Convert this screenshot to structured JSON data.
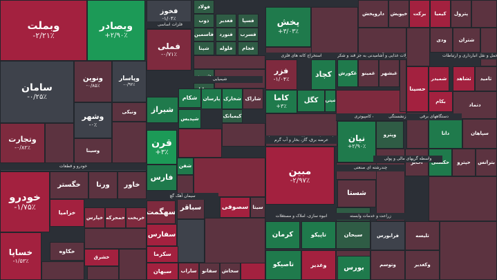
{
  "chart_data": {
    "type": "treemap",
    "title": "",
    "colors": {
      "strong_negative": "#a3213f",
      "negative": "#7e2a3e",
      "weak_negative": "#5c3340",
      "neutral": "#3e424b",
      "weak_positive": "#2f5c45",
      "positive": "#1f7a4c",
      "strong_positive": "#1c9a57",
      "background": "#2b2f36"
    },
    "sector_labels": [
      "خودرو و قطعات",
      "سیمان آهک گچ",
      "شیمیایی",
      "استخراج کانه های فلزی",
      "مواد و محصولات دارویی",
      "فراورده های نفتی، کک و سوخت هسته ای",
      "محصولات غذایی و آشامیدنی به جز قند و شکر",
      "فلزات اساسی",
      "انبوه سازی، املاک و مستغلات",
      "عرضه برق، گاز، بخار و آب گرم",
      "بانکها و موسسات اعتباری",
      "محصولات کامپیوتری",
      "زراعت و خدمات وابسته",
      "چندرشته ای صنعتی",
      "بیمه و بازنشستگی",
      "واسطه گریهای مالی و پولی",
      "دستگاههای برقی",
      "حمل و نقل انبارداری و ارتباطات"
    ],
    "stocks": [
      {
        "name": "وبملت",
        "change": "-۲/۲۱٪"
      },
      {
        "name": "وبصادر",
        "change": "+۲/۹۰٪"
      },
      {
        "name": "فملی",
        "change": "-۰/۷۱٪"
      },
      {
        "name": "سامان",
        "change": "-۰/۲۵٪"
      },
      {
        "name": "ونوین",
        "change": "-۰/۸۵٪"
      },
      {
        "name": "وپاسار",
        "change": "-۰/۹۲٪"
      },
      {
        "name": "وتجارت",
        "change": "-۰/۸۲٪"
      },
      {
        "name": "وشهر",
        "change": "-۰٪"
      },
      {
        "name": "ونیکی",
        "change": ""
      },
      {
        "name": "وسینا",
        "change": ""
      },
      {
        "name": "خودرو",
        "change": "-۱/۷۵٪"
      },
      {
        "name": "خگستر",
        "change": ""
      },
      {
        "name": "ورنا",
        "change": ""
      },
      {
        "name": "خاور",
        "change": ""
      },
      {
        "name": "خزامیا",
        "change": ""
      },
      {
        "name": "خساپا",
        "change": "-۱/۵۳٪"
      },
      {
        "name": "خپارس",
        "change": ""
      },
      {
        "name": "خمحرکه",
        "change": ""
      },
      {
        "name": "خریخت",
        "change": ""
      },
      {
        "name": "خکاوه",
        "change": ""
      },
      {
        "name": "خشرق",
        "change": ""
      },
      {
        "name": "فخوز",
        "change": "-۱/۰۴٪"
      },
      {
        "name": "فولاد",
        "change": ""
      },
      {
        "name": "فاسمین",
        "change": ""
      },
      {
        "name": "فنورد",
        "change": ""
      },
      {
        "name": "فسرب",
        "change": ""
      },
      {
        "name": "فلوله",
        "change": ""
      },
      {
        "name": "فجام",
        "change": ""
      },
      {
        "name": "ذوب",
        "change": ""
      },
      {
        "name": "فغدیر",
        "change": ""
      },
      {
        "name": "فسپا",
        "change": ""
      },
      {
        "name": "شپنا",
        "change": ""
      },
      {
        "name": "شبریز",
        "change": ""
      },
      {
        "name": "شرانل",
        "change": ""
      },
      {
        "name": "شکام",
        "change": ""
      },
      {
        "name": "شیراز",
        "change": ""
      },
      {
        "name": "شپدیس",
        "change": ""
      },
      {
        "name": "پارسان",
        "change": ""
      },
      {
        "name": "شخارک",
        "change": ""
      },
      {
        "name": "شاراک",
        "change": ""
      },
      {
        "name": "کیمیاتک",
        "change": ""
      },
      {
        "name": "قرن",
        "change": "+۳٪"
      },
      {
        "name": "فارس",
        "change": ""
      },
      {
        "name": "شفن",
        "change": ""
      },
      {
        "name": "پخش",
        "change": "+۳/۰۳٪"
      },
      {
        "name": "فزر",
        "change": "-۱/۰۴٪"
      },
      {
        "name": "کچاد",
        "change": ""
      },
      {
        "name": "کگل",
        "change": ""
      },
      {
        "name": "کاما",
        "change": "+۳٪"
      },
      {
        "name": "شپترو",
        "change": ""
      },
      {
        "name": "مبین",
        "change": "-۲/۹۷٪"
      },
      {
        "name": "کرمان",
        "change": ""
      },
      {
        "name": "تاپیکو",
        "change": ""
      },
      {
        "name": "سبحان",
        "change": ""
      },
      {
        "name": "نیان",
        "change": "+۲/۹۰٪"
      },
      {
        "name": "شستا",
        "change": ""
      },
      {
        "name": "وپترو",
        "change": ""
      },
      {
        "name": "حسینا",
        "change": ""
      },
      {
        "name": "شمیدر",
        "change": ""
      },
      {
        "name": "شتران",
        "change": ""
      },
      {
        "name": "سکرما",
        "change": ""
      },
      {
        "name": "سبهان",
        "change": ""
      },
      {
        "name": "ساراب",
        "change": ""
      },
      {
        "name": "سفانو",
        "change": ""
      },
      {
        "name": "سخاش",
        "change": ""
      },
      {
        "name": "سهگمت",
        "change": ""
      },
      {
        "name": "سباقر",
        "change": ""
      },
      {
        "name": "سفارس",
        "change": ""
      },
      {
        "name": "سصوفی",
        "change": ""
      },
      {
        "name": "سیتا",
        "change": ""
      },
      {
        "name": "وغدیر",
        "change": ""
      },
      {
        "name": "وبیمه",
        "change": ""
      },
      {
        "name": "تاصیکو",
        "change": ""
      },
      {
        "name": "وتوسم",
        "change": ""
      },
      {
        "name": "وکغدیر",
        "change": ""
      },
      {
        "name": "بورس",
        "change": ""
      },
      {
        "name": "فرابورس",
        "change": ""
      },
      {
        "name": "تلیسه",
        "change": ""
      },
      {
        "name": "غکورش",
        "change": ""
      },
      {
        "name": "غمینو",
        "change": ""
      },
      {
        "name": "غبشهر",
        "change": ""
      },
      {
        "name": "داروپخش",
        "change": ""
      },
      {
        "name": "خپویش",
        "change": ""
      },
      {
        "name": "برکت",
        "change": ""
      },
      {
        "name": "کیمیا",
        "change": ""
      },
      {
        "name": "پترول",
        "change": ""
      },
      {
        "name": "ودی",
        "change": ""
      },
      {
        "name": "اخابر",
        "change": ""
      },
      {
        "name": "حکشتی",
        "change": ""
      },
      {
        "name": "حپترو",
        "change": ""
      },
      {
        "name": "بترانس",
        "change": ""
      },
      {
        "name": "بکام",
        "change": ""
      },
      {
        "name": "ثشاهد",
        "change": ""
      },
      {
        "name": "ثامید",
        "change": ""
      },
      {
        "name": "دتماد",
        "change": ""
      },
      {
        "name": "دانا",
        "change": ""
      },
      {
        "name": "سپاهان",
        "change": ""
      }
    ]
  }
}
